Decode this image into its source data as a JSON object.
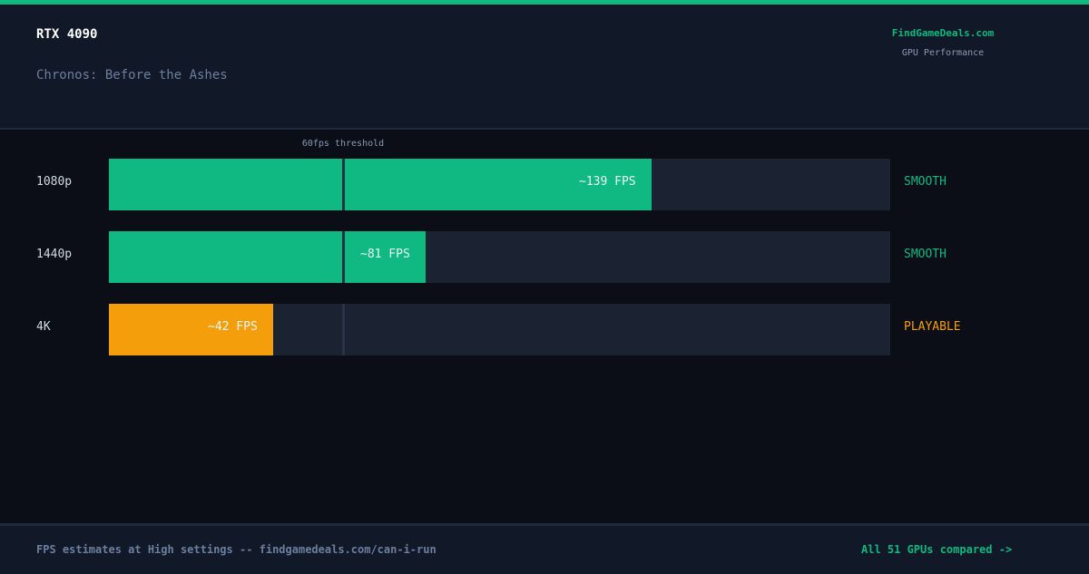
{
  "header": {
    "gpu": "RTX 4090",
    "game": "Chronos: Before the Ashes",
    "brand": "FindGameDeals.com",
    "brand_sub": "GPU Performance"
  },
  "chart_data": {
    "type": "bar",
    "orientation": "horizontal",
    "categories": [
      "1080p",
      "1440p",
      "4K"
    ],
    "values": [
      139,
      81,
      42
    ],
    "value_labels": [
      "~139 FPS",
      "~81 FPS",
      "~42 FPS"
    ],
    "statuses": [
      "SMOOTH",
      "SMOOTH",
      "PLAYABLE"
    ],
    "xlim": [
      0,
      200
    ],
    "threshold": {
      "value": 60,
      "label": "60fps threshold"
    },
    "colors": {
      "smooth": "#10b981",
      "playable": "#f59e0b",
      "track": "#1b2232",
      "threshold_line": "#2a3344"
    }
  },
  "footer": {
    "note": "FPS estimates at High settings -- findgamedeals.com/can-i-run",
    "link": "All 51 GPUs compared ->"
  }
}
